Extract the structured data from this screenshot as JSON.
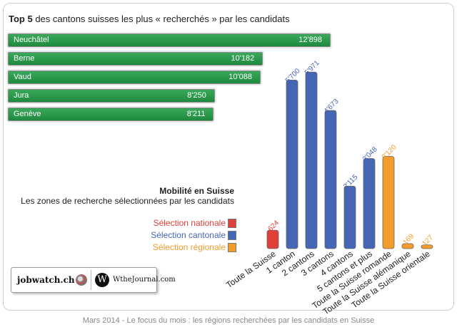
{
  "title": {
    "bold": "Top 5",
    "rest": " des cantons suisses les plus « recherchés » par les candidats"
  },
  "top5": [
    {
      "name": "Neuchâtel",
      "value_label": "12'898",
      "value": 12898
    },
    {
      "name": "Berne",
      "value_label": "10'182",
      "value": 10182
    },
    {
      "name": "Vaud",
      "value_label": "10'088",
      "value": 10088
    },
    {
      "name": "Jura",
      "value_label": "8'250",
      "value": 8250
    },
    {
      "name": "Genève",
      "value_label": "8'211",
      "value": 8211
    }
  ],
  "subtitle": {
    "line1": "Mobilité en Suisse",
    "line2": "Les zones de recherche sélectionnées par les candidats"
  },
  "legend": [
    {
      "label": "Sélection nationale",
      "color": "#e0403a"
    },
    {
      "label": "Sélection cantonale",
      "color": "#4565b5"
    },
    {
      "label": "Sélection régionale",
      "color": "#f39c2b"
    }
  ],
  "chart_data": [
    {
      "type": "bar",
      "orientation": "horizontal",
      "title": "Top 5 des cantons suisses les plus « recherchés » par les candidats",
      "categories": [
        "Neuchâtel",
        "Berne",
        "Vaud",
        "Jura",
        "Genève"
      ],
      "values": [
        12898,
        10182,
        10088,
        8250,
        8211
      ],
      "color": "#2a9a4b",
      "grid": false
    },
    {
      "type": "bar",
      "orientation": "vertical",
      "title": "Mobilité en Suisse",
      "subtitle": "Les zones de recherche sélectionnées par les candidats",
      "categories": [
        "Toute la Suisse",
        "1 canton",
        "2 cantons",
        "3 cantons",
        "4 cantons",
        "5 cantons et plus",
        "Toute la Suisse romande",
        "Toute la Suisse alémanique",
        "Toute la Suisse orientale"
      ],
      "values": [
        624,
        5700,
        5971,
        4673,
        2115,
        3048,
        3120,
        169,
        127
      ],
      "labels": [
        "624",
        "5'700",
        "5'971",
        "4'673",
        "2'115",
        "3'048",
        "3'120",
        "169",
        "127"
      ],
      "groups": [
        "nationale",
        "cantonale",
        "cantonale",
        "cantonale",
        "cantonale",
        "cantonale",
        "régionale",
        "régionale",
        "régionale"
      ],
      "group_colors": {
        "nationale": "#e0403a",
        "cantonale": "#4565b5",
        "régionale": "#f39c2b"
      },
      "ylim": [
        0,
        6000
      ],
      "grid": false,
      "legend_position": "left"
    }
  ],
  "logos": {
    "left": "jobwatch.ch",
    "right_mark": "W",
    "right": "WtheJournal.com"
  },
  "footer": "Mars 2014 - Le focus du mois : les régions recherchées par les candidats en Suisse"
}
